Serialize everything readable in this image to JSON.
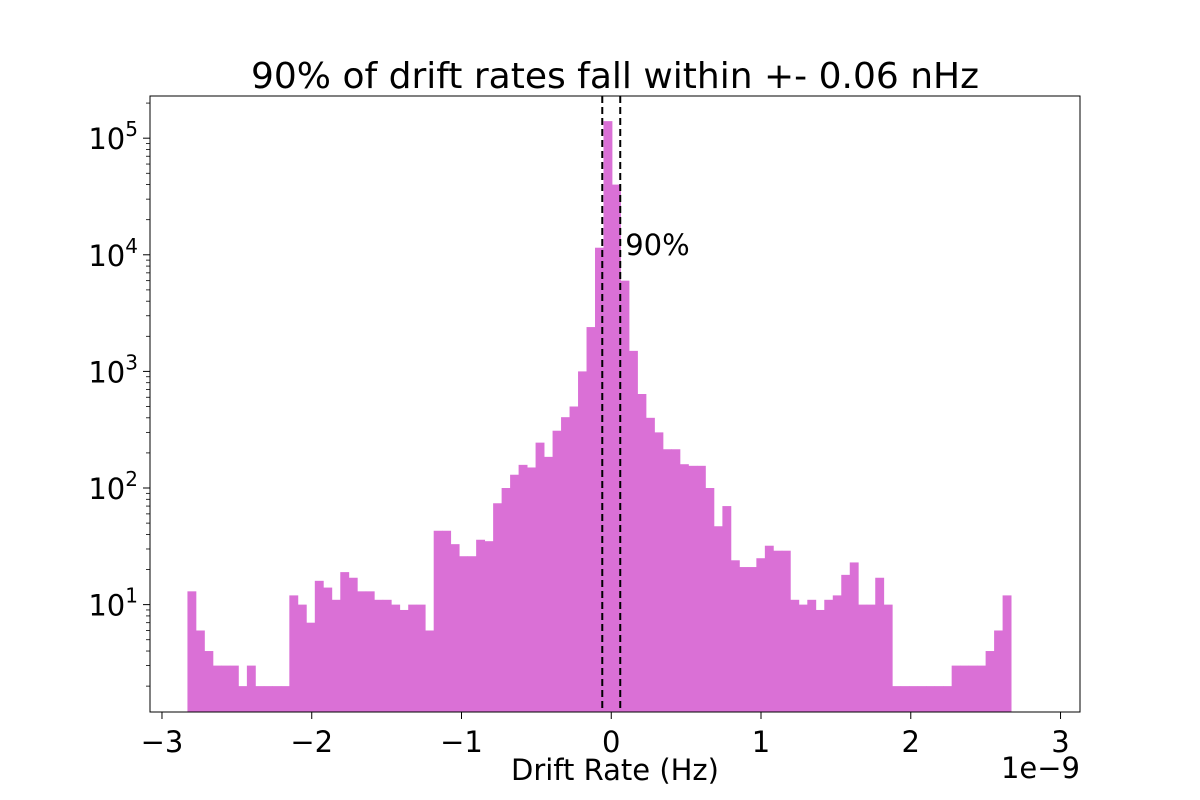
{
  "chart_data": {
    "type": "bar",
    "title": "90% of drift rates fall within +- 0.06 nHz",
    "xlabel": "Drift Rate (Hz)",
    "ylabel": "",
    "x_offset_label": "1e−9",
    "xlim": [
      -3.08,
      3.13
    ],
    "x_scale_factor": 1e-09,
    "yscale": "log",
    "ylim": [
      1.2,
      230000
    ],
    "xticks": [
      {
        "value": -3,
        "label": "−3"
      },
      {
        "value": -2,
        "label": "−2"
      },
      {
        "value": -1,
        "label": "−1"
      },
      {
        "value": 0,
        "label": "0"
      },
      {
        "value": 1,
        "label": "1"
      },
      {
        "value": 2,
        "label": "2"
      },
      {
        "value": 3,
        "label": "3"
      }
    ],
    "yticks": [
      {
        "value": 10,
        "base": "10",
        "exp": "1"
      },
      {
        "value": 100,
        "base": "10",
        "exp": "2"
      },
      {
        "value": 1000,
        "base": "10",
        "exp": "3"
      },
      {
        "value": 10000,
        "base": "10",
        "exp": "4"
      },
      {
        "value": 100000,
        "base": "10",
        "exp": "5"
      }
    ],
    "grid": false,
    "bar_color": "#da70d6",
    "bin_start": -2.83,
    "bin_width": 0.0567,
    "counts": [
      13,
      6,
      4,
      3,
      3,
      3,
      2,
      3,
      2,
      2,
      2,
      2,
      12,
      10,
      7,
      16,
      14,
      11,
      19,
      17,
      13,
      13,
      11,
      11,
      10,
      9,
      10,
      10,
      6,
      43,
      43,
      33,
      26,
      26,
      36,
      35,
      74,
      100,
      130,
      158,
      150,
      245,
      185,
      310,
      405,
      500,
      1000,
      2400,
      11500,
      140000,
      40000,
      6000,
      1500,
      640,
      400,
      300,
      215,
      215,
      160,
      155,
      155,
      100,
      47,
      70,
      24,
      21,
      21,
      25,
      32,
      29,
      29,
      11,
      10,
      11,
      9,
      11,
      12,
      18,
      23,
      10,
      10,
      17,
      10,
      2,
      2,
      2,
      2,
      2,
      2,
      2,
      3,
      3,
      3,
      3,
      4,
      6,
      12
    ],
    "vlines": [
      {
        "x": -0.06,
        "style": "dashed",
        "color": "#000000"
      },
      {
        "x": 0.06,
        "style": "dashed",
        "color": "#000000"
      }
    ],
    "annotations": [
      {
        "text": "90%",
        "x": 0.08,
        "y": 10000
      }
    ]
  }
}
